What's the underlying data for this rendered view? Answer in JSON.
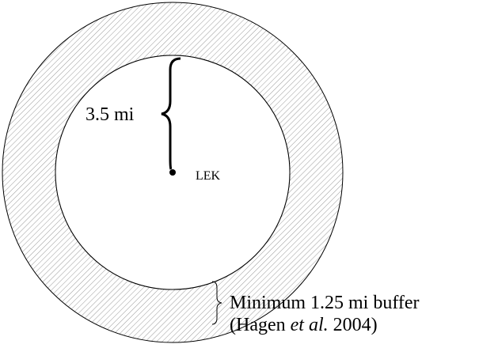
{
  "radius_label": "3.5 mi",
  "center_label": "LEK",
  "buffer_label": {
    "line1": "Minimum 1.25 mi buffer",
    "line2": {
      "before": "(Hagen ",
      "italic": "et al.",
      "after": " 2004)"
    }
  }
}
